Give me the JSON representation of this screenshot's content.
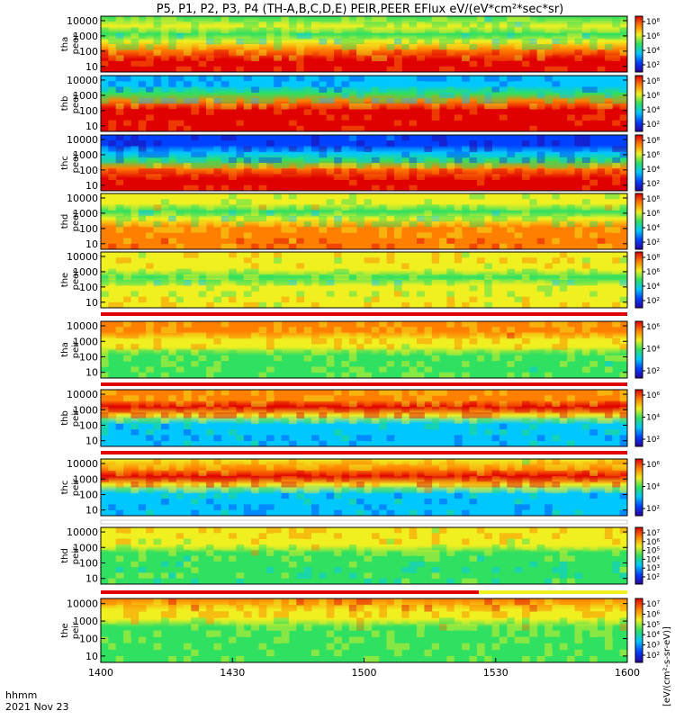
{
  "chart_data": {
    "type": "heatmap",
    "title": "P5, P1, P2, P3, P4 (TH-A,B,C,D,E) PEIR,PEER EFlux eV/(eV*cm²*sec*sr)",
    "x_axis": {
      "corner_label": "hhmm",
      "date_label": "2021 Nov 23",
      "ticks": [
        "1400",
        "1430",
        "1500",
        "1530",
        "1600"
      ],
      "range": [
        "14:00",
        "16:00"
      ]
    },
    "colorbar_unit_label": "[eV/(cm²-s-sr-eV)]",
    "colormap": [
      "#2a00a0",
      "#0040ff",
      "#00c8ff",
      "#30e060",
      "#f0f020",
      "#ff8000",
      "#e00000"
    ],
    "panels": [
      {
        "line1": "tha",
        "line2": "peer",
        "y_ticks": [
          "10000",
          "1000",
          "100",
          "10"
        ],
        "colorbar_ticks": [
          "10⁸",
          "10⁶",
          "10⁴",
          "10²"
        ],
        "colorbar_range": [
          0,
          8
        ],
        "bands": [
          {
            "y": 0.0,
            "c": 0.55
          },
          {
            "y": 0.18,
            "c": 0.6
          },
          {
            "y": 0.32,
            "c": 0.5
          },
          {
            "y": 0.45,
            "c": 0.62
          },
          {
            "y": 0.6,
            "c": 0.85
          },
          {
            "y": 0.78,
            "c": 0.95
          },
          {
            "y": 1.0,
            "c": 0.95
          }
        ]
      },
      {
        "line1": "thb",
        "line2": "peer",
        "y_ticks": [
          "10000",
          "1000",
          "100",
          "10"
        ],
        "colorbar_ticks": [
          "10⁸",
          "10⁶",
          "10⁴",
          "10²"
        ],
        "colorbar_range": [
          0,
          8
        ],
        "bands": [
          {
            "y": 0.0,
            "c": 0.28
          },
          {
            "y": 0.18,
            "c": 0.35
          },
          {
            "y": 0.32,
            "c": 0.45
          },
          {
            "y": 0.45,
            "c": 0.75
          },
          {
            "y": 0.6,
            "c": 0.95
          },
          {
            "y": 0.78,
            "c": 1.0
          },
          {
            "y": 1.0,
            "c": 1.0
          }
        ]
      },
      {
        "line1": "thc",
        "line2": "peer",
        "y_ticks": [
          "10000",
          "1000",
          "100",
          "10"
        ],
        "colorbar_ticks": [
          "10⁸",
          "10⁶",
          "10⁴",
          "10²"
        ],
        "colorbar_range": [
          0,
          8
        ],
        "bands": [
          {
            "y": 0.0,
            "c": 0.12
          },
          {
            "y": 0.18,
            "c": 0.15
          },
          {
            "y": 0.32,
            "c": 0.25
          },
          {
            "y": 0.45,
            "c": 0.55
          },
          {
            "y": 0.6,
            "c": 0.9
          },
          {
            "y": 0.78,
            "c": 1.0
          },
          {
            "y": 1.0,
            "c": 1.0
          }
        ]
      },
      {
        "line1": "thd",
        "line2": "peer",
        "y_ticks": [
          "10000",
          "1000",
          "100",
          "10"
        ],
        "colorbar_ticks": [
          "10⁸",
          "10⁶",
          "10⁴",
          "10²"
        ],
        "colorbar_range": [
          0,
          8
        ],
        "bands": [
          {
            "y": 0.0,
            "c": 0.6
          },
          {
            "y": 0.18,
            "c": 0.62
          },
          {
            "y": 0.32,
            "c": 0.52
          },
          {
            "y": 0.45,
            "c": 0.6
          },
          {
            "y": 0.6,
            "c": 0.75
          },
          {
            "y": 0.78,
            "c": 0.85
          },
          {
            "y": 1.0,
            "c": 0.85
          }
        ]
      },
      {
        "line1": "the",
        "line2": "peer",
        "y_ticks": [
          "10000",
          "1000",
          "100",
          "10"
        ],
        "colorbar_ticks": [
          "10⁸",
          "10⁶",
          "10⁴",
          "10²"
        ],
        "colorbar_range": [
          0,
          8
        ],
        "bands": [
          {
            "y": 0.0,
            "c": 0.7
          },
          {
            "y": 0.18,
            "c": 0.72
          },
          {
            "y": 0.32,
            "c": 0.6
          },
          {
            "y": 0.45,
            "c": 0.5
          },
          {
            "y": 0.6,
            "c": 0.62
          },
          {
            "y": 0.78,
            "c": 0.7
          },
          {
            "y": 1.0,
            "c": 0.7
          }
        ]
      },
      {
        "line1": "tha",
        "line2": "peir",
        "y_ticks": [
          "10000",
          "1000",
          "100",
          "10"
        ],
        "colorbar_ticks": [
          "10⁶",
          "10⁴",
          "10²"
        ],
        "colorbar_range": [
          1,
          7
        ],
        "bands": [
          {
            "y": 0.0,
            "c": 0.75
          },
          {
            "y": 0.18,
            "c": 0.78
          },
          {
            "y": 0.32,
            "c": 0.72
          },
          {
            "y": 0.45,
            "c": 0.6
          },
          {
            "y": 0.6,
            "c": 0.55
          },
          {
            "y": 0.78,
            "c": 0.55
          },
          {
            "y": 1.0,
            "c": 0.55
          }
        ]
      },
      {
        "line1": "thb",
        "line2": "peir",
        "y_ticks": [
          "10000",
          "1000",
          "100",
          "10"
        ],
        "colorbar_ticks": [
          "10⁶",
          "10⁴",
          "10²"
        ],
        "colorbar_range": [
          1,
          7
        ],
        "bands": [
          {
            "y": 0.0,
            "c": 0.75
          },
          {
            "y": 0.18,
            "c": 0.82
          },
          {
            "y": 0.3,
            "c": 0.95
          },
          {
            "y": 0.45,
            "c": 0.6
          },
          {
            "y": 0.6,
            "c": 0.35
          },
          {
            "y": 0.78,
            "c": 0.3
          },
          {
            "y": 1.0,
            "c": 0.3
          }
        ]
      },
      {
        "line1": "thc",
        "line2": "peir",
        "y_ticks": [
          "10000",
          "1000",
          "100",
          "10"
        ],
        "colorbar_ticks": [
          "10⁶",
          "10⁴",
          "10²"
        ],
        "colorbar_range": [
          1,
          7
        ],
        "bands": [
          {
            "y": 0.0,
            "c": 0.72
          },
          {
            "y": 0.18,
            "c": 0.85
          },
          {
            "y": 0.3,
            "c": 0.95
          },
          {
            "y": 0.45,
            "c": 0.62
          },
          {
            "y": 0.6,
            "c": 0.35
          },
          {
            "y": 0.78,
            "c": 0.3
          },
          {
            "y": 1.0,
            "c": 0.3
          }
        ]
      },
      {
        "line1": "thd",
        "line2": "peir",
        "y_ticks": [
          "10000",
          "1000",
          "100",
          "10"
        ],
        "colorbar_ticks": [
          "10⁷",
          "10⁶",
          "10⁵",
          "10⁴",
          "10³",
          "10²"
        ],
        "colorbar_range": [
          1.5,
          7.5
        ],
        "bands": [
          {
            "y": 0.0,
            "c": 0.72
          },
          {
            "y": 0.18,
            "c": 0.68
          },
          {
            "y": 0.32,
            "c": 0.62
          },
          {
            "y": 0.45,
            "c": 0.55
          },
          {
            "y": 0.6,
            "c": 0.48
          },
          {
            "y": 0.78,
            "c": 0.5
          },
          {
            "y": 1.0,
            "c": 0.5
          }
        ]
      },
      {
        "line1": "the",
        "line2": "peir",
        "y_ticks": [
          "10000",
          "1000",
          "100",
          "10"
        ],
        "colorbar_ticks": [
          "10⁷",
          "10⁶",
          "10⁵",
          "10⁴",
          "10³",
          "10²"
        ],
        "colorbar_range": [
          1.5,
          7.5
        ],
        "bands": [
          {
            "y": 0.0,
            "c": 0.82
          },
          {
            "y": 0.18,
            "c": 0.72
          },
          {
            "y": 0.32,
            "c": 0.62
          },
          {
            "y": 0.45,
            "c": 0.58
          },
          {
            "y": 0.6,
            "c": 0.56
          },
          {
            "y": 0.78,
            "c": 0.55
          },
          {
            "y": 1.0,
            "c": 0.55
          }
        ]
      }
    ]
  }
}
